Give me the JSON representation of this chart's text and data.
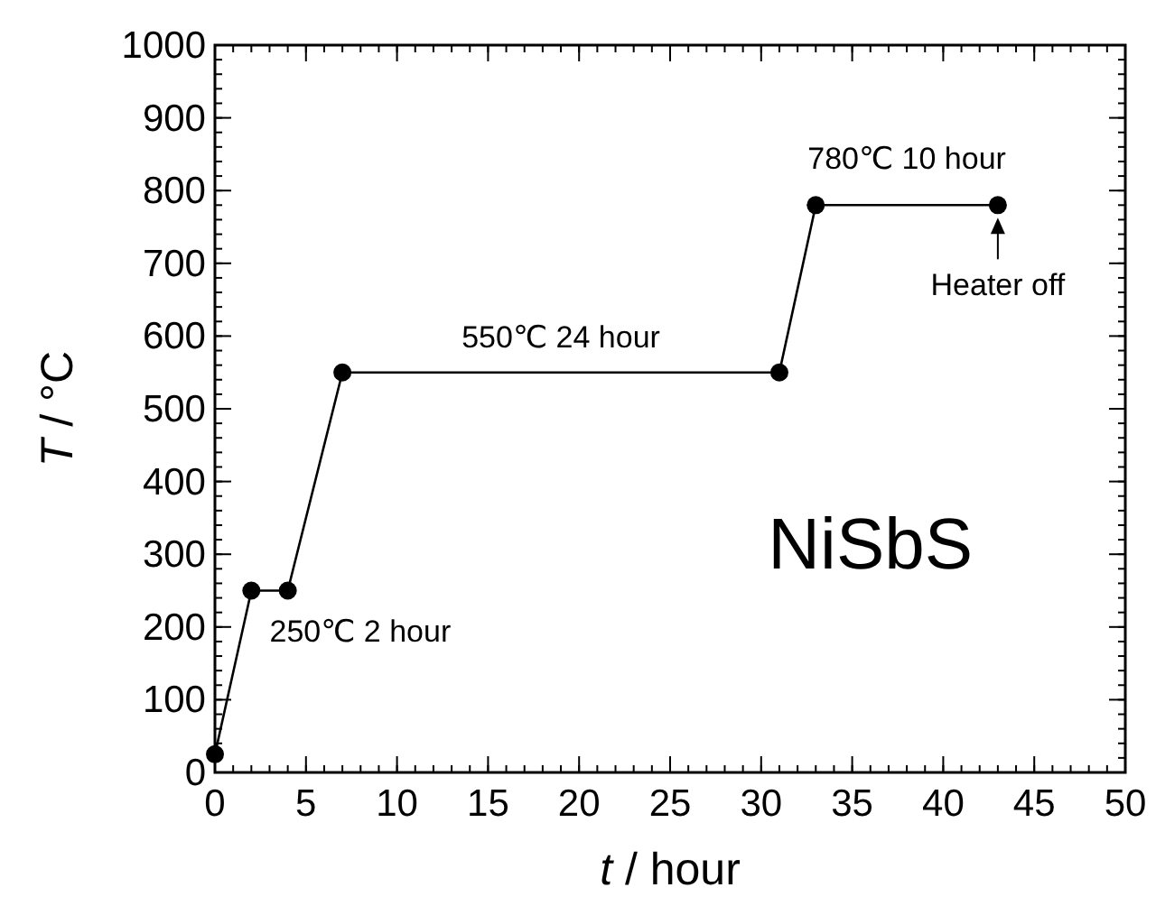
{
  "chart_data": {
    "type": "line",
    "xlabel": "t / hour",
    "ylabel": "T / °C",
    "x": [
      0,
      2,
      4,
      7,
      31,
      33,
      43
    ],
    "series": [
      {
        "color": "#000000",
        "values": [
          25,
          250,
          250,
          550,
          550,
          780,
          780
        ]
      }
    ],
    "xlim": [
      0,
      50
    ],
    "xticks": [
      0,
      5,
      10,
      15,
      20,
      25,
      30,
      35,
      40,
      45,
      50
    ],
    "ylim": [
      0,
      1000
    ],
    "yticks": [
      0,
      100,
      200,
      300,
      400,
      500,
      600,
      700,
      800,
      900,
      1000
    ],
    "grid": false,
    "marker": "circle",
    "line_style": "solid",
    "annotations": [
      {
        "text": "250℃ 2 hour",
        "x": 3,
        "y": 250
      },
      {
        "text": "550℃ 24 hour",
        "x": 19,
        "y": 550
      },
      {
        "text": "780℃ 10 hour",
        "x": 38,
        "y": 780
      },
      {
        "text": "Heater off",
        "x": 43,
        "y": 780
      },
      "NiSbS"
    ]
  }
}
